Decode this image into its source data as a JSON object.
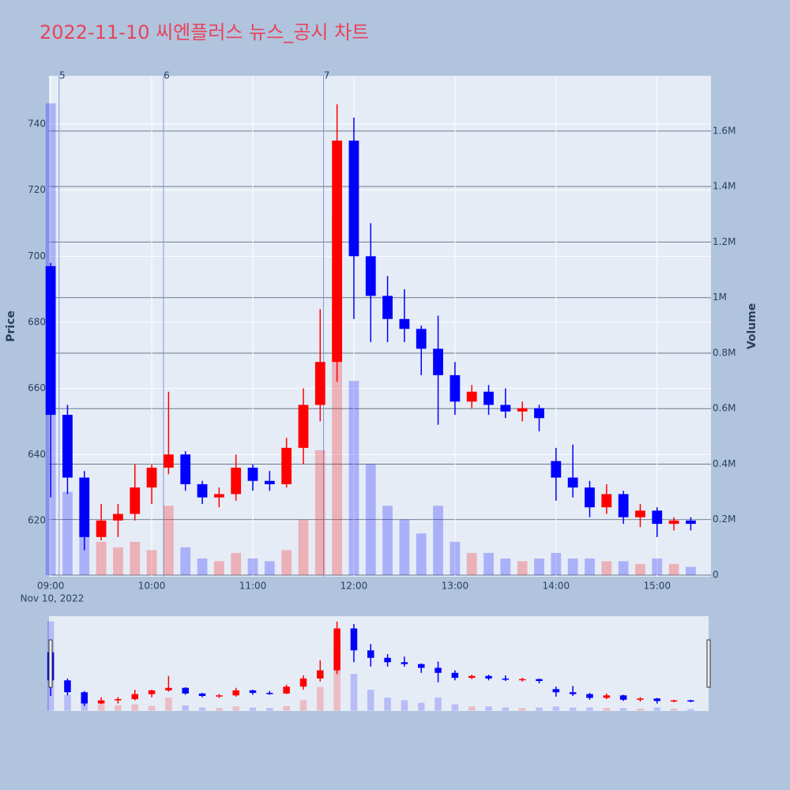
{
  "chart_data": {
    "type": "candlestick",
    "title": "2022-11-10 씨엔플러스 뉴스_공시 차트",
    "ylabel": "Price",
    "y2label": "Volume",
    "x": [
      "2022-11-10 09:00",
      "2022-11-10 09:10",
      "2022-11-10 09:20",
      "2022-11-10 09:30",
      "2022-11-10 09:40",
      "2022-11-10 09:50",
      "2022-11-10 10:00",
      "2022-11-10 10:10",
      "2022-11-10 10:20",
      "2022-11-10 10:30",
      "2022-11-10 10:40",
      "2022-11-10 10:50",
      "2022-11-10 11:00",
      "2022-11-10 11:10",
      "2022-11-10 11:20",
      "2022-11-10 11:30",
      "2022-11-10 11:40",
      "2022-11-10 11:50",
      "2022-11-10 12:00",
      "2022-11-10 12:10",
      "2022-11-10 12:20",
      "2022-11-10 12:30",
      "2022-11-10 12:40",
      "2022-11-10 12:50",
      "2022-11-10 13:00",
      "2022-11-10 13:10",
      "2022-11-10 13:20",
      "2022-11-10 13:30",
      "2022-11-10 13:40",
      "2022-11-10 13:50",
      "2022-11-10 14:00",
      "2022-11-10 14:10",
      "2022-11-10 14:20",
      "2022-11-10 14:30",
      "2022-11-10 14:40",
      "2022-11-10 14:50",
      "2022-11-10 15:00",
      "2022-11-10 15:10",
      "2022-11-10 15:20"
    ],
    "open": [
      697,
      652,
      633,
      615,
      620,
      622,
      630,
      636,
      640,
      631,
      627,
      628,
      636,
      632,
      631,
      642,
      655,
      668,
      735,
      700,
      688,
      681,
      678,
      672,
      664,
      656,
      659,
      655,
      653,
      654,
      638,
      633,
      630,
      624,
      628,
      621,
      623,
      619,
      620
    ],
    "high": [
      698,
      655,
      635,
      625,
      625,
      637,
      637,
      659,
      641,
      632,
      630,
      640,
      637,
      635,
      645,
      660,
      684,
      746,
      742,
      710,
      694,
      690,
      679,
      682,
      668,
      661,
      661,
      660,
      656,
      655,
      642,
      643,
      632,
      631,
      629,
      625,
      624,
      621,
      621
    ],
    "low": [
      627,
      628,
      611,
      614,
      615,
      620,
      625,
      634,
      629,
      625,
      624,
      626,
      629,
      629,
      630,
      637,
      650,
      662,
      681,
      674,
      674,
      674,
      664,
      649,
      652,
      654,
      652,
      651,
      650,
      647,
      626,
      627,
      621,
      622,
      619,
      618,
      615,
      617,
      617
    ],
    "close": [
      652,
      633,
      615,
      620,
      622,
      630,
      636,
      640,
      631,
      627,
      628,
      636,
      632,
      631,
      642,
      655,
      668,
      735,
      700,
      688,
      681,
      678,
      672,
      664,
      656,
      659,
      655,
      653,
      654,
      651,
      633,
      630,
      624,
      628,
      621,
      623,
      619,
      620,
      619
    ],
    "volume": [
      1700000,
      300000,
      200000,
      120000,
      100000,
      120000,
      90000,
      250000,
      100000,
      60000,
      50000,
      80000,
      60000,
      50000,
      90000,
      200000,
      450000,
      1300000,
      700000,
      400000,
      250000,
      200000,
      150000,
      250000,
      120000,
      80000,
      80000,
      60000,
      50000,
      60000,
      80000,
      60000,
      60000,
      50000,
      50000,
      40000,
      60000,
      40000,
      30000
    ],
    "increasing_color": "#ff0000",
    "decreasing_color": "#0000ff",
    "xlim": [
      "2022-11-10 08:59",
      "2022-11-10 15:32"
    ],
    "xticks": [
      {
        "value": "2022-11-10 09:00",
        "label": "09:00"
      },
      {
        "value": "2022-11-10 10:00",
        "label": "10:00"
      },
      {
        "value": "2022-11-10 11:00",
        "label": "11:00"
      },
      {
        "value": "2022-11-10 12:00",
        "label": "12:00"
      },
      {
        "value": "2022-11-10 13:00",
        "label": "13:00"
      },
      {
        "value": "2022-11-10 14:00",
        "label": "14:00"
      },
      {
        "value": "2022-11-10 15:00",
        "label": "15:00"
      }
    ],
    "x_date_label": "Nov 10, 2022",
    "ylim": [
      603,
      754.6
    ],
    "yticks": [
      620,
      640,
      660,
      680,
      700,
      720,
      740
    ],
    "y2lim": [
      -5700,
      1799000
    ],
    "y2ticks": [
      0,
      {
        "value": 200000,
        "label": "0.2M"
      },
      {
        "value": 400000,
        "label": "0.4M"
      },
      {
        "value": 600000,
        "label": "0.6M"
      },
      {
        "value": 800000,
        "label": "0.8M"
      },
      {
        "value": 1000000,
        "label": "1M"
      },
      {
        "value": 1200000,
        "label": "1.2M"
      },
      {
        "value": 1400000,
        "label": "1.4M"
      },
      {
        "value": 1600000,
        "label": "1.6M"
      }
    ],
    "markers": [
      {
        "x": "2022-11-10 09:05",
        "label": "5"
      },
      {
        "x": "2022-11-10 10:07",
        "label": "6"
      },
      {
        "x": "2022-11-10 11:42",
        "label": "7"
      }
    ],
    "rangeslider": true
  }
}
